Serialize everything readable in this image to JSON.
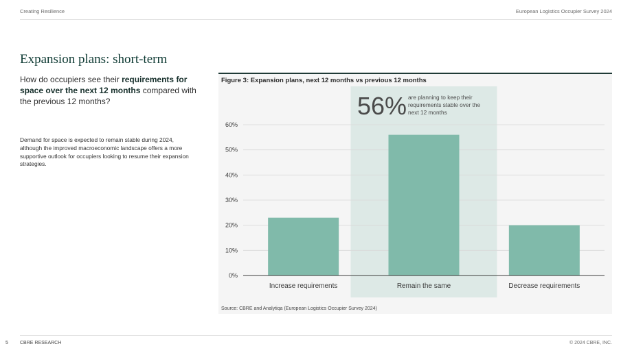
{
  "header": {
    "left": "Creating Resilience",
    "right": "European Logistics Occupier Survey 2024"
  },
  "content": {
    "title": "Expansion plans: short-term",
    "question_parts": [
      "How do occupiers see their ",
      "requirements for space over the next 12 months",
      " compared with the previous 12 months?"
    ],
    "body": "Demand for space is expected to remain stable during 2024, although the improved macroeconomic landscape offers a more supportive outlook for occupiers looking to resume their expansion strategies."
  },
  "figure": {
    "title": "Figure 3: Expansion plans, next 12 months vs previous 12 months",
    "source": "Source: CBRE and Analytiqa (European Logistics Occupier Survey 2024)",
    "callout": {
      "value": "56%",
      "text": "are planning to keep their requirements stable over the next 12 months"
    }
  },
  "chart_data": {
    "type": "bar",
    "categories": [
      "Increase requirements",
      "Remain the same",
      "Decrease requirements"
    ],
    "values": [
      23,
      56,
      20
    ],
    "yticks": [
      "0%",
      "10%",
      "20%",
      "30%",
      "40%",
      "50%",
      "60%"
    ],
    "ylim": [
      0,
      60
    ],
    "grid": true,
    "highlight_category": "Remain the same",
    "colors": {
      "bar": "#80baaa",
      "highlight": "#dde9e6",
      "grid": "#d9d9d9",
      "axis": "#3a3a3a"
    }
  },
  "footer": {
    "page": "5",
    "left": "CBRE RESEARCH",
    "right": "© 2024 CBRE, INC."
  }
}
